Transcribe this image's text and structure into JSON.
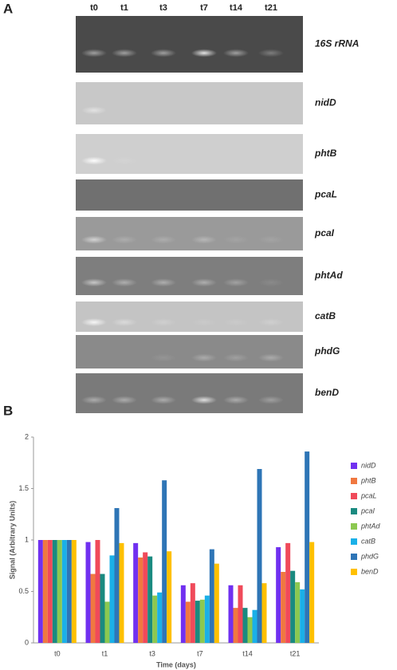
{
  "panel_a": {
    "label": "A",
    "lanes": [
      "t0",
      "t1",
      "t3",
      "t7",
      "t14",
      "t21"
    ],
    "genes": [
      "16S rRNA",
      "nidD",
      "phtB",
      "pcaL",
      "pcaI",
      "phtAd",
      "catB",
      "phdG",
      "benD"
    ]
  },
  "chart_data": {
    "type": "bar",
    "panel_label": "B",
    "y_label": "Signal (Arbitrary Units)",
    "x_label": "Time (days)",
    "categories": [
      "t0",
      "t1",
      "t3",
      "t7",
      "t14",
      "t21"
    ],
    "series": [
      {
        "name": "nidD",
        "color": "#7030f0",
        "values": [
          1,
          0.98,
          0.97,
          0.56,
          0.56,
          0.93
        ]
      },
      {
        "name": "phtB",
        "color": "#f07840",
        "values": [
          1,
          0.67,
          0.83,
          0.4,
          0.34,
          0.69
        ]
      },
      {
        "name": "pcaL",
        "color": "#f04a5a",
        "values": [
          1,
          1,
          0.88,
          0.58,
          0.56,
          0.97
        ]
      },
      {
        "name": "pcaI",
        "color": "#1a8a80",
        "values": [
          1,
          0.67,
          0.84,
          0.41,
          0.34,
          0.7
        ]
      },
      {
        "name": "phtAd",
        "color": "#8cc850",
        "values": [
          1,
          0.4,
          0.46,
          0.42,
          0.25,
          0.59
        ]
      },
      {
        "name": "catB",
        "color": "#1ab0e8",
        "values": [
          1,
          0.85,
          0.49,
          0.46,
          0.32,
          0.52
        ]
      },
      {
        "name": "phdG",
        "color": "#2e75b6",
        "values": [
          1,
          1.31,
          1.58,
          0.91,
          1.69,
          1.86
        ]
      },
      {
        "name": "benD",
        "color": "#ffc000",
        "values": [
          1,
          0.97,
          0.89,
          0.77,
          0.58,
          0.98
        ]
      }
    ],
    "ylim": [
      0,
      2
    ],
    "yticks": [
      0,
      0.5,
      1,
      1.5,
      2
    ],
    "grid": false,
    "legend": "right"
  }
}
